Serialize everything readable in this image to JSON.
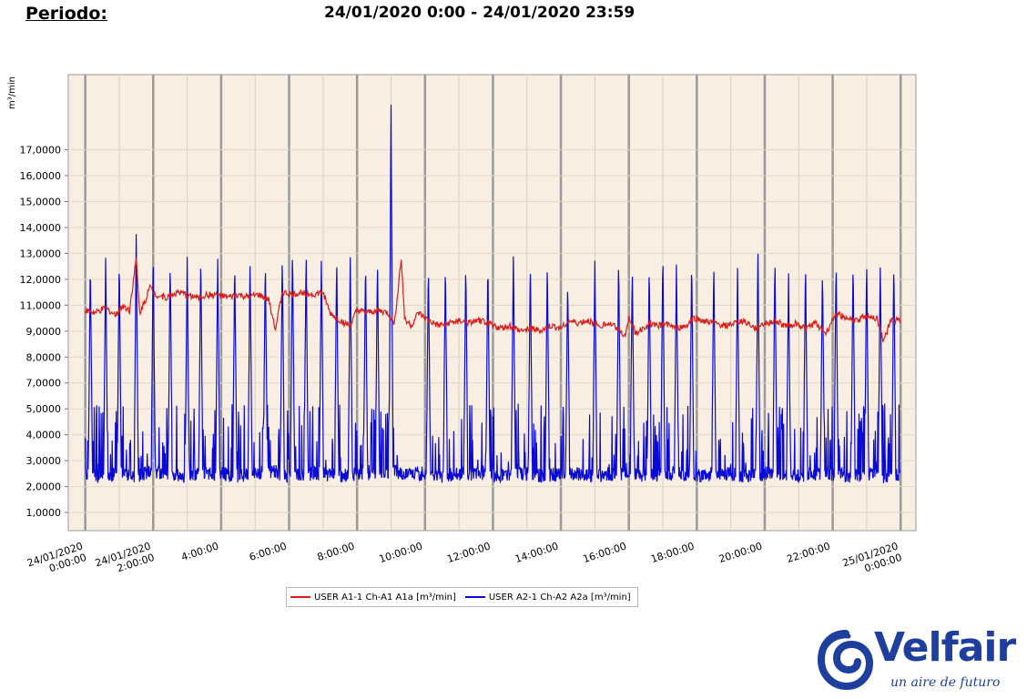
{
  "header": {
    "period_label": "Periodo:",
    "period_value": "24/01/2020 0:00 - 24/01/2020 23:59"
  },
  "logo": {
    "name": "Velfair",
    "tagline": "un aire de futuro"
  },
  "colors": {
    "series1": "#d91c1c",
    "series2": "#0a0ad6",
    "plot_background": "#f8efe2",
    "grid_major": "#a0a0a0",
    "logo": "#1e3f9e"
  },
  "chart_data": {
    "type": "line",
    "title": "",
    "xlabel": "",
    "ylabel": "m³/min",
    "y_ticks": [
      "1,0000",
      "2,0000",
      "3,0000",
      "4,0000",
      "5,0000",
      "7,0000",
      "8,0000",
      "9,0000",
      "11,0000",
      "12,0000",
      "13,0000",
      "14,0000",
      "15,0000",
      "16,0000",
      "17,0000"
    ],
    "x_ticks": [
      {
        "hour": 0,
        "label": [
          "24/01/2020",
          "0:00:00"
        ]
      },
      {
        "hour": 2,
        "label": [
          "24/01/2020",
          "2:00:00"
        ]
      },
      {
        "hour": 4,
        "label": [
          "4:00:00"
        ]
      },
      {
        "hour": 6,
        "label": [
          "6:00:00"
        ]
      },
      {
        "hour": 8,
        "label": [
          "8:00:00"
        ]
      },
      {
        "hour": 10,
        "label": [
          "10:00:00"
        ]
      },
      {
        "hour": 12,
        "label": [
          "12:00:00"
        ]
      },
      {
        "hour": 14,
        "label": [
          "14:00:00"
        ]
      },
      {
        "hour": 16,
        "label": [
          "16:00:00"
        ]
      },
      {
        "hour": 18,
        "label": [
          "18:00:00"
        ]
      },
      {
        "hour": 20,
        "label": [
          "20:00:00"
        ]
      },
      {
        "hour": 22,
        "label": [
          "22:00:00"
        ]
      },
      {
        "hour": 24,
        "label": [
          "25/01/2020",
          "0:00:00"
        ]
      }
    ],
    "xlim_hours": [
      -0.5,
      24.45
    ],
    "ylim": [
      0.3,
      17.9
    ],
    "grid": true,
    "legend_position": "bottom",
    "series": [
      {
        "name": "USER A1-1 Ch-A1 A1a [m³/min]",
        "color": "#d91c1c",
        "points": [
          [
            0,
            8.8
          ],
          [
            0.3,
            8.7
          ],
          [
            0.6,
            8.9
          ],
          [
            0.9,
            8.6
          ],
          [
            1.1,
            9.0
          ],
          [
            1.3,
            8.8
          ],
          [
            1.5,
            10.8
          ],
          [
            1.6,
            8.7
          ],
          [
            1.8,
            9.3
          ],
          [
            1.9,
            9.7
          ],
          [
            2.1,
            9.4
          ],
          [
            2.4,
            9.3
          ],
          [
            2.7,
            9.5
          ],
          [
            3.0,
            9.4
          ],
          [
            3.3,
            9.3
          ],
          [
            3.6,
            9.4
          ],
          [
            3.9,
            9.4
          ],
          [
            4.2,
            9.3
          ],
          [
            4.5,
            9.4
          ],
          [
            4.8,
            9.3
          ],
          [
            5.1,
            9.4
          ],
          [
            5.4,
            9.2
          ],
          [
            5.6,
            8.1
          ],
          [
            5.8,
            9.5
          ],
          [
            6.1,
            9.4
          ],
          [
            6.4,
            9.5
          ],
          [
            6.7,
            9.4
          ],
          [
            7.0,
            9.5
          ],
          [
            7.2,
            8.7
          ],
          [
            7.5,
            8.4
          ],
          [
            7.8,
            8.2
          ],
          [
            8.0,
            8.8
          ],
          [
            8.3,
            8.7
          ],
          [
            8.6,
            8.8
          ],
          [
            8.9,
            8.7
          ],
          [
            9.1,
            8.3
          ],
          [
            9.3,
            10.8
          ],
          [
            9.4,
            8.5
          ],
          [
            9.6,
            8.2
          ],
          [
            9.8,
            8.7
          ],
          [
            10.1,
            8.4
          ],
          [
            10.4,
            8.2
          ],
          [
            10.7,
            8.3
          ],
          [
            11.0,
            8.4
          ],
          [
            11.3,
            8.3
          ],
          [
            11.6,
            8.4
          ],
          [
            11.9,
            8.3
          ],
          [
            12.2,
            8.1
          ],
          [
            12.5,
            8.2
          ],
          [
            12.8,
            8.0
          ],
          [
            13.1,
            8.1
          ],
          [
            13.4,
            8.0
          ],
          [
            13.7,
            8.2
          ],
          [
            14.0,
            8.1
          ],
          [
            14.2,
            8.4
          ],
          [
            14.5,
            8.3
          ],
          [
            14.8,
            8.4
          ],
          [
            15.1,
            8.2
          ],
          [
            15.4,
            8.3
          ],
          [
            15.7,
            8.1
          ],
          [
            15.9,
            7.8
          ],
          [
            16.0,
            8.6
          ],
          [
            16.2,
            7.9
          ],
          [
            16.4,
            8.1
          ],
          [
            16.6,
            8.3
          ],
          [
            16.8,
            8.2
          ],
          [
            17.1,
            8.3
          ],
          [
            17.4,
            8.1
          ],
          [
            17.7,
            8.2
          ],
          [
            17.9,
            8.5
          ],
          [
            18.2,
            8.4
          ],
          [
            18.5,
            8.3
          ],
          [
            18.8,
            8.2
          ],
          [
            19.1,
            8.3
          ],
          [
            19.4,
            8.4
          ],
          [
            19.7,
            8.1
          ],
          [
            20.0,
            8.3
          ],
          [
            20.3,
            8.4
          ],
          [
            20.6,
            8.2
          ],
          [
            20.9,
            8.3
          ],
          [
            21.2,
            8.1
          ],
          [
            21.5,
            8.3
          ],
          [
            21.8,
            7.9
          ],
          [
            22.1,
            8.7
          ],
          [
            22.4,
            8.5
          ],
          [
            22.7,
            8.4
          ],
          [
            23.0,
            8.6
          ],
          [
            23.3,
            8.5
          ],
          [
            23.5,
            7.6
          ],
          [
            23.7,
            8.4
          ],
          [
            24.0,
            8.4
          ]
        ]
      },
      {
        "name": "USER A2-1 Ch-A2 A2a [m³/min]",
        "color": "#0a0ad6",
        "baseline_points": [
          [
            0,
            2.5
          ],
          [
            0.5,
            2.4
          ],
          [
            1.0,
            2.5
          ],
          [
            1.5,
            2.4
          ],
          [
            2.0,
            2.6
          ],
          [
            2.5,
            2.5
          ],
          [
            3.0,
            2.4
          ],
          [
            3.5,
            2.5
          ],
          [
            4.0,
            2.5
          ],
          [
            4.5,
            2.4
          ],
          [
            5.0,
            2.5
          ],
          [
            5.5,
            2.6
          ],
          [
            6.0,
            2.4
          ],
          [
            6.5,
            2.5
          ],
          [
            7.0,
            2.5
          ],
          [
            7.5,
            2.4
          ],
          [
            8.0,
            2.5
          ],
          [
            8.5,
            2.5
          ],
          [
            9.0,
            2.6
          ],
          [
            9.5,
            2.5
          ],
          [
            10.0,
            2.5
          ],
          [
            10.5,
            2.4
          ],
          [
            11.0,
            2.5
          ],
          [
            11.5,
            2.5
          ],
          [
            12.0,
            2.4
          ],
          [
            12.5,
            2.5
          ],
          [
            13.0,
            2.5
          ],
          [
            13.5,
            2.4
          ],
          [
            14.0,
            2.5
          ],
          [
            14.5,
            2.5
          ],
          [
            15.0,
            2.4
          ],
          [
            15.5,
            2.5
          ],
          [
            16.0,
            2.5
          ],
          [
            16.5,
            2.4
          ],
          [
            17.0,
            2.5
          ],
          [
            17.5,
            2.5
          ],
          [
            18.0,
            2.4
          ],
          [
            18.5,
            2.5
          ],
          [
            19.0,
            2.5
          ],
          [
            19.5,
            2.4
          ],
          [
            20.0,
            2.5
          ],
          [
            20.5,
            2.5
          ],
          [
            21.0,
            2.4
          ],
          [
            21.5,
            2.5
          ],
          [
            22.0,
            2.5
          ],
          [
            22.5,
            2.4
          ],
          [
            23.0,
            2.5
          ],
          [
            23.5,
            2.4
          ],
          [
            24.0,
            2.5
          ]
        ],
        "peaks": [
          [
            0.15,
            10.8
          ],
          [
            0.6,
            10.8
          ],
          [
            1.0,
            10.9
          ],
          [
            1.5,
            11.7
          ],
          [
            2.0,
            11.1
          ],
          [
            2.5,
            10.9
          ],
          [
            3.0,
            11.0
          ],
          [
            3.4,
            10.9
          ],
          [
            3.9,
            10.9
          ],
          [
            4.4,
            10.8
          ],
          [
            4.85,
            10.9
          ],
          [
            5.3,
            10.8
          ],
          [
            5.8,
            11.0
          ],
          [
            6.1,
            11.4
          ],
          [
            6.5,
            11.2
          ],
          [
            6.95,
            10.9
          ],
          [
            7.4,
            10.9
          ],
          [
            7.8,
            10.9
          ],
          [
            8.25,
            10.8
          ],
          [
            8.6,
            10.9
          ],
          [
            9.0,
            16.7
          ],
          [
            10.1,
            10.7
          ],
          [
            10.6,
            10.7
          ],
          [
            11.2,
            10.8
          ],
          [
            11.85,
            10.7
          ],
          [
            12.6,
            10.9
          ],
          [
            13.1,
            10.7
          ],
          [
            13.6,
            10.7
          ],
          [
            14.2,
            10.1
          ],
          [
            15.0,
            10.8
          ],
          [
            15.7,
            10.9
          ],
          [
            16.1,
            10.5
          ],
          [
            16.6,
            10.7
          ],
          [
            17.0,
            11.2
          ],
          [
            17.4,
            10.7
          ],
          [
            17.85,
            10.9
          ],
          [
            18.5,
            10.7
          ],
          [
            19.2,
            10.5
          ],
          [
            19.8,
            11.1
          ],
          [
            20.3,
            11.0
          ],
          [
            20.7,
            10.1
          ],
          [
            21.2,
            10.8
          ],
          [
            21.7,
            10.5
          ],
          [
            22.1,
            10.9
          ],
          [
            22.6,
            10.7
          ],
          [
            23.0,
            10.8
          ],
          [
            23.4,
            10.6
          ],
          [
            23.8,
            10.8
          ]
        ]
      }
    ]
  }
}
